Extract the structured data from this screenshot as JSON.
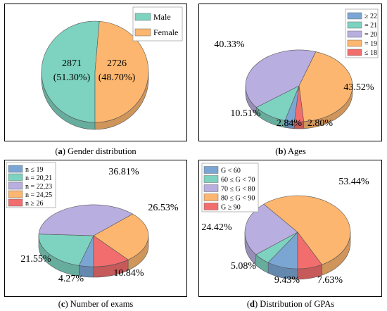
{
  "chart_data": [
    {
      "type": "pie",
      "panel_letter": "a",
      "caption": "Gender distribution",
      "categories": [
        "Male",
        "Female"
      ],
      "values": [
        51.3,
        48.7
      ],
      "counts": [
        "2871",
        "2726"
      ],
      "value_labels": [
        "(51.30%)",
        "(48.70%)"
      ],
      "colors": [
        "#7dd3c0",
        "#fdb66f"
      ],
      "legend_position": "top-right"
    },
    {
      "type": "pie",
      "panel_letter": "b",
      "caption": "Ages",
      "categories": [
        "≥ 22",
        "= 21",
        "= 20",
        "= 19",
        "≤ 18"
      ],
      "values": [
        2.84,
        10.51,
        40.33,
        43.52,
        2.8
      ],
      "value_labels": [
        "2.84%",
        "10.51%",
        "40.33%",
        "43.52%",
        "2.80%"
      ],
      "colors": [
        "#7ba6d4",
        "#7dd3c0",
        "#b9aee0",
        "#fdb66f",
        "#f26d6d"
      ],
      "legend_position": "top-right"
    },
    {
      "type": "pie",
      "panel_letter": "c",
      "caption": "Number of exams",
      "categories": [
        "n ≤ 19",
        "n = 20,21",
        "n = 22,23",
        "n = 24,25",
        "n ≥ 26"
      ],
      "values": [
        4.27,
        21.55,
        36.81,
        26.53,
        10.84
      ],
      "value_labels": [
        "4.27%",
        "21.55%",
        "36.81%",
        "26.53%",
        "10.84%"
      ],
      "colors": [
        "#7ba6d4",
        "#7dd3c0",
        "#b9aee0",
        "#fdb66f",
        "#f26d6d"
      ],
      "legend_position": "top-left"
    },
    {
      "type": "pie",
      "panel_letter": "d",
      "caption": "Distribution of GPAs",
      "categories": [
        "G < 60",
        "60 ≤ G < 70",
        "70 ≤ G < 80",
        "80 ≤ G < 90",
        "G ≥ 90"
      ],
      "values": [
        9.43,
        5.08,
        24.42,
        53.44,
        7.63
      ],
      "value_labels": [
        "9.43%",
        "5.08%",
        "24.42%",
        "53.44%",
        "7.63%"
      ],
      "colors": [
        "#7ba6d4",
        "#7dd3c0",
        "#b9aee0",
        "#fdb66f",
        "#f26d6d"
      ],
      "legend_position": "top-left"
    }
  ]
}
